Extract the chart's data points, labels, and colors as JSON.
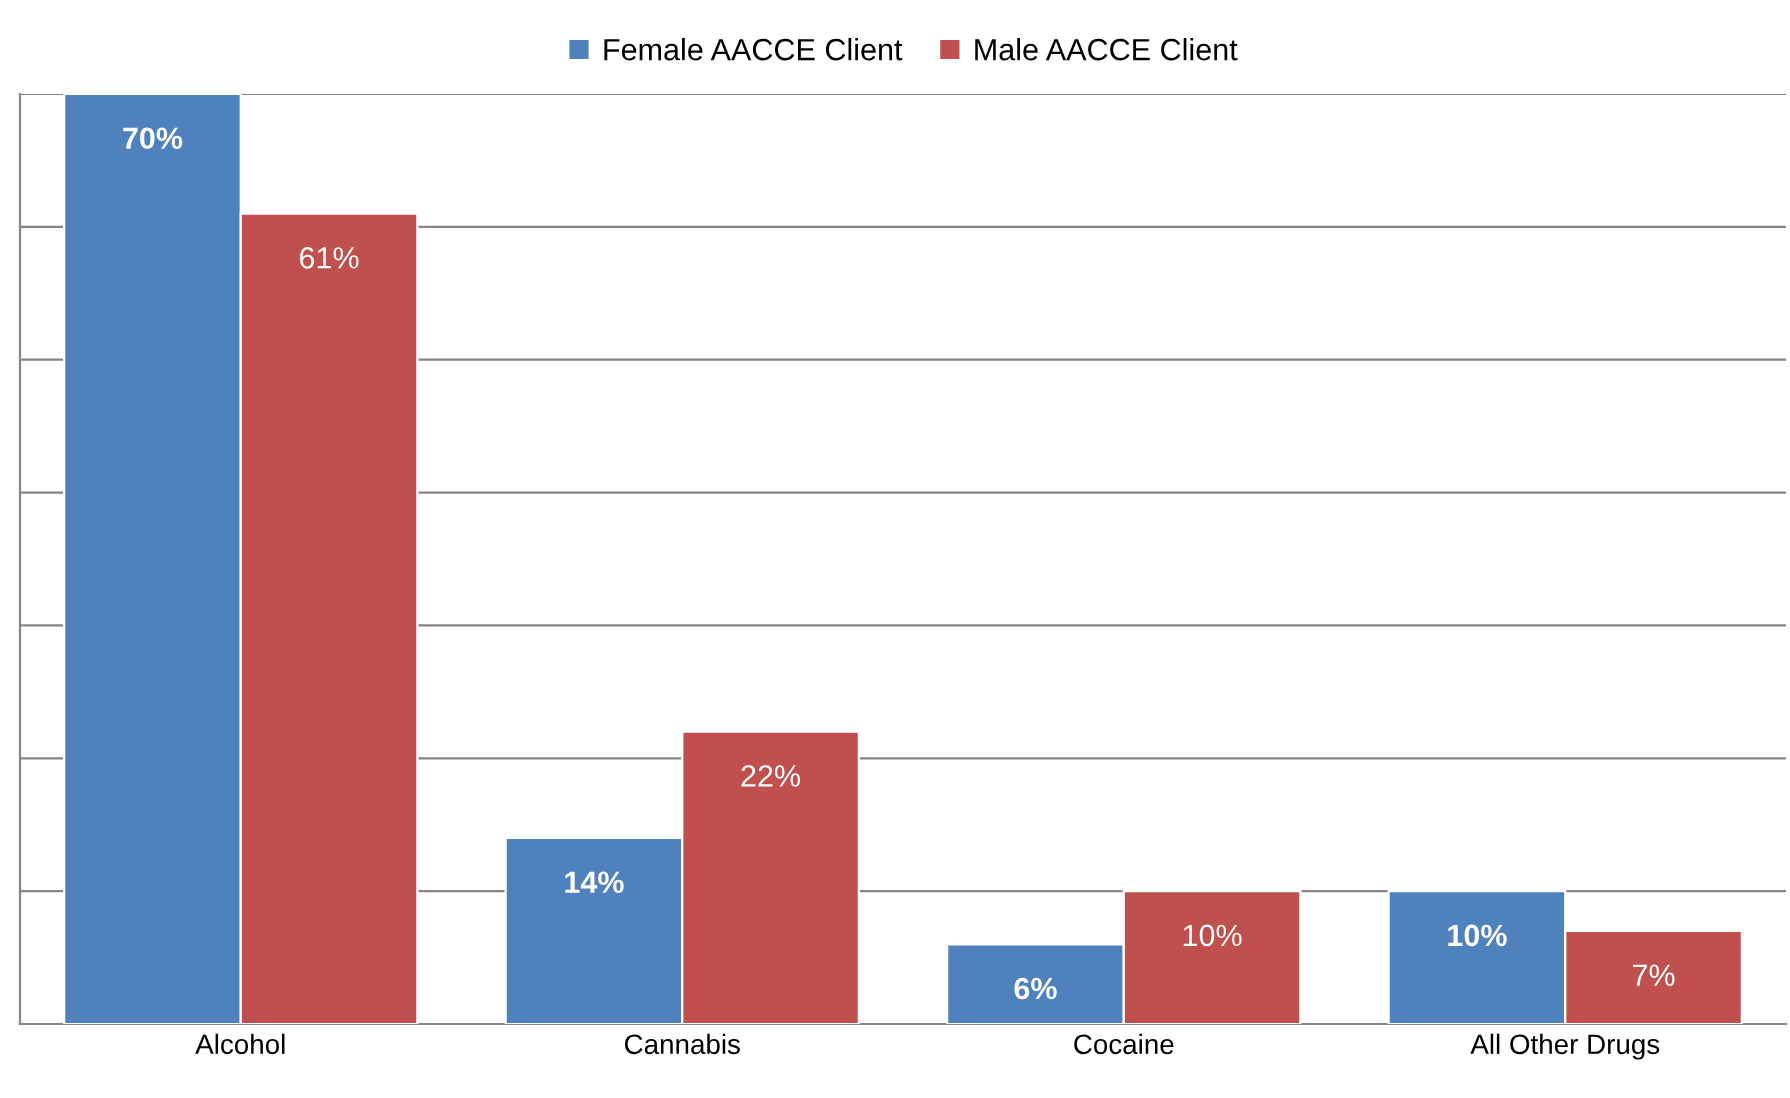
{
  "chart_data": {
    "type": "bar",
    "categories": [
      "Alcohol",
      "Cannabis",
      "Cocaine",
      "All Other Drugs"
    ],
    "series": [
      {
        "name": "Female AACCE Client",
        "color": "#4f81bd",
        "values": [
          70,
          14,
          6,
          10
        ],
        "value_labels": [
          "70%",
          "14%",
          "6%",
          "10%"
        ]
      },
      {
        "name": "Male AACCE Client",
        "color": "#c0504d",
        "values": [
          61,
          22,
          10,
          7
        ],
        "value_labels": [
          "61%",
          "22%",
          "10%",
          "7%"
        ]
      }
    ],
    "ylim": [
      0,
      70
    ],
    "yticks": [
      {
        "value": 0,
        "label": null
      },
      {
        "value": 10,
        "label": null
      },
      {
        "value": 20,
        "label": null
      },
      {
        "value": 30,
        "label": null
      },
      {
        "value": 40,
        "label": null
      },
      {
        "value": 50,
        "label": null
      },
      {
        "value": 60,
        "label": null
      },
      {
        "value": 70,
        "label": null
      }
    ],
    "grid": "y",
    "legend": "top",
    "tick_labels": "x"
  }
}
